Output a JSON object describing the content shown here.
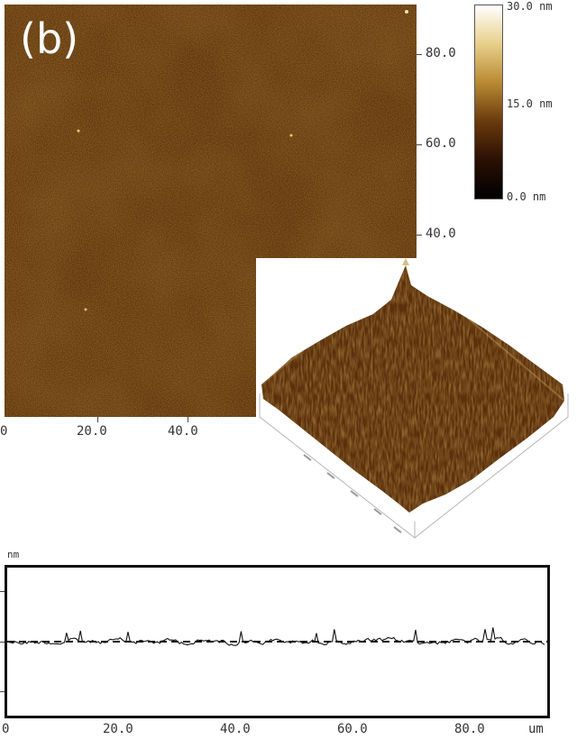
{
  "panel": {
    "label": "(b)"
  },
  "image_axes": {
    "y_ticks": [
      "80.0",
      "60.0",
      "40.0"
    ],
    "x_ticks": [
      "0",
      "20.0",
      "40.0"
    ]
  },
  "colorbar": {
    "max_label": "30.0 nm",
    "mid_label": "15.0 nm",
    "min_label": "0.0 nm",
    "colors": [
      "#ffffff",
      "#e8cf8a",
      "#b88a34",
      "#6a3a0c",
      "#2a1004",
      "#000000"
    ]
  },
  "profile": {
    "y_unit": "nm",
    "x_unit": "um",
    "x_ticks": [
      "0",
      "20.0",
      "40.0",
      "60.0",
      "80.0"
    ]
  }
}
